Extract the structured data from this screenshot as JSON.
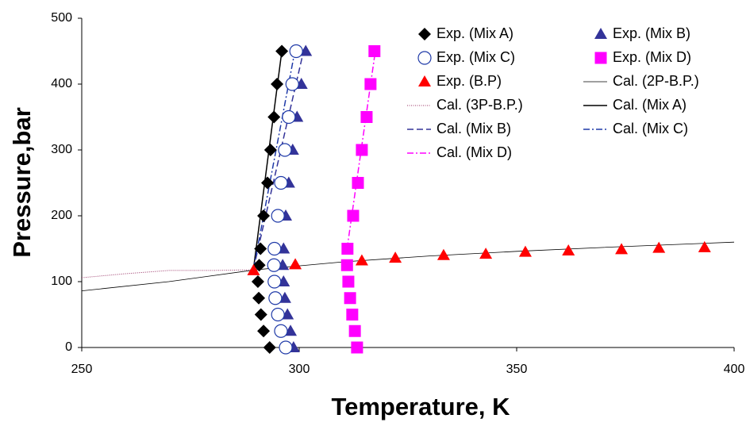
{
  "chart_data": {
    "type": "scatter",
    "xlabel": "Temperature, K",
    "ylabel": "Pressure,bar",
    "xlim": [
      250,
      400
    ],
    "xticks": [
      250,
      300,
      350,
      400
    ],
    "ylim": [
      0,
      500
    ],
    "yticks": [
      0,
      100,
      200,
      300,
      400,
      500
    ],
    "grid": false,
    "legend": "upper right",
    "series": [
      {
        "name": "Exp. (Mix A)",
        "color": "#000000",
        "marker": "diamond",
        "x": [
          293.2,
          291.8,
          291.2,
          290.7,
          290.5,
          290.8,
          291.1,
          291.8,
          292.7,
          293.4,
          294.2,
          294.9,
          296.0
        ],
        "values": [
          0,
          25,
          50,
          75,
          100,
          125,
          150,
          200,
          250,
          300,
          350,
          400,
          450
        ]
      },
      {
        "name": "Exp. (Mix B)",
        "color": "#333399",
        "marker": "triangle",
        "x": [
          298.7,
          298.0,
          297.3,
          296.7,
          296.4,
          296.2,
          296.4,
          296.9,
          297.6,
          298.5,
          299.5,
          300.5,
          301.5
        ],
        "values": [
          0,
          25,
          50,
          75,
          100,
          125,
          150,
          200,
          250,
          300,
          350,
          400,
          450
        ]
      },
      {
        "name": "Exp. (Mix C)",
        "color": "#1f3aa8",
        "marker": "circle",
        "x": [
          296.9,
          295.8,
          295.1,
          294.5,
          294.3,
          294.2,
          294.3,
          295.1,
          295.8,
          296.7,
          297.6,
          298.4,
          299.3
        ],
        "values": [
          0,
          25,
          50,
          75,
          100,
          125,
          150,
          200,
          250,
          300,
          350,
          400,
          450
        ]
      },
      {
        "name": "Exp. (Mix D)",
        "color": "#ff00ff",
        "marker": "square",
        "x": [
          313.3,
          312.8,
          312.2,
          311.7,
          311.3,
          311.0,
          311.1,
          312.4,
          313.5,
          314.4,
          315.5,
          316.4,
          317.3
        ],
        "values": [
          0,
          25,
          50,
          75,
          100,
          125,
          150,
          200,
          250,
          300,
          350,
          400,
          450
        ]
      },
      {
        "name": "Exp. (B.P)",
        "color": "#ff0000",
        "marker": "triangle",
        "x": [
          289.5,
          299.1,
          314.4,
          322.1,
          333.2,
          342.9,
          352.0,
          361.9,
          374.1,
          382.7,
          393.2
        ],
        "values": [
          117,
          126,
          132,
          136,
          140,
          142,
          145,
          147,
          149,
          151,
          152
        ]
      },
      {
        "name": "Cal. (2P-B.P.)",
        "color": "#000000",
        "width": 0.8,
        "x": [
          250,
          270,
          290,
          310,
          330,
          350,
          370,
          400
        ],
        "values": [
          86,
          100,
          118,
          130,
          139,
          146,
          152,
          160
        ]
      },
      {
        "name": "Cal. (3P-B.P.)",
        "color": "#993366",
        "width": 1,
        "dash": "1,1.5",
        "x": [
          250,
          260,
          270,
          280,
          290
        ],
        "values": [
          106,
          112,
          117,
          117,
          118
        ]
      },
      {
        "name": "Cal. (Mix A)",
        "color": "#000000",
        "width": 1.5,
        "x": [
          289.5,
          296.0
        ],
        "values": [
          120,
          450
        ]
      },
      {
        "name": "Cal. (Mix B)",
        "color": "#333399",
        "width": 1.5,
        "dash": "8,4",
        "x": [
          289.5,
          301.0
        ],
        "values": [
          120,
          450
        ]
      },
      {
        "name": "Cal. (Mix C)",
        "color": "#1f3aa8",
        "width": 1.5,
        "dash": "8,3,2,3",
        "x": [
          289.5,
          299.0
        ],
        "values": [
          120,
          450
        ]
      },
      {
        "name": "Cal. (Mix D)",
        "color": "#ff00ff",
        "width": 1.5,
        "dash": "8,3,2,3",
        "x": [
          311.0,
          317.5
        ],
        "values": [
          150,
          450
        ]
      }
    ]
  }
}
